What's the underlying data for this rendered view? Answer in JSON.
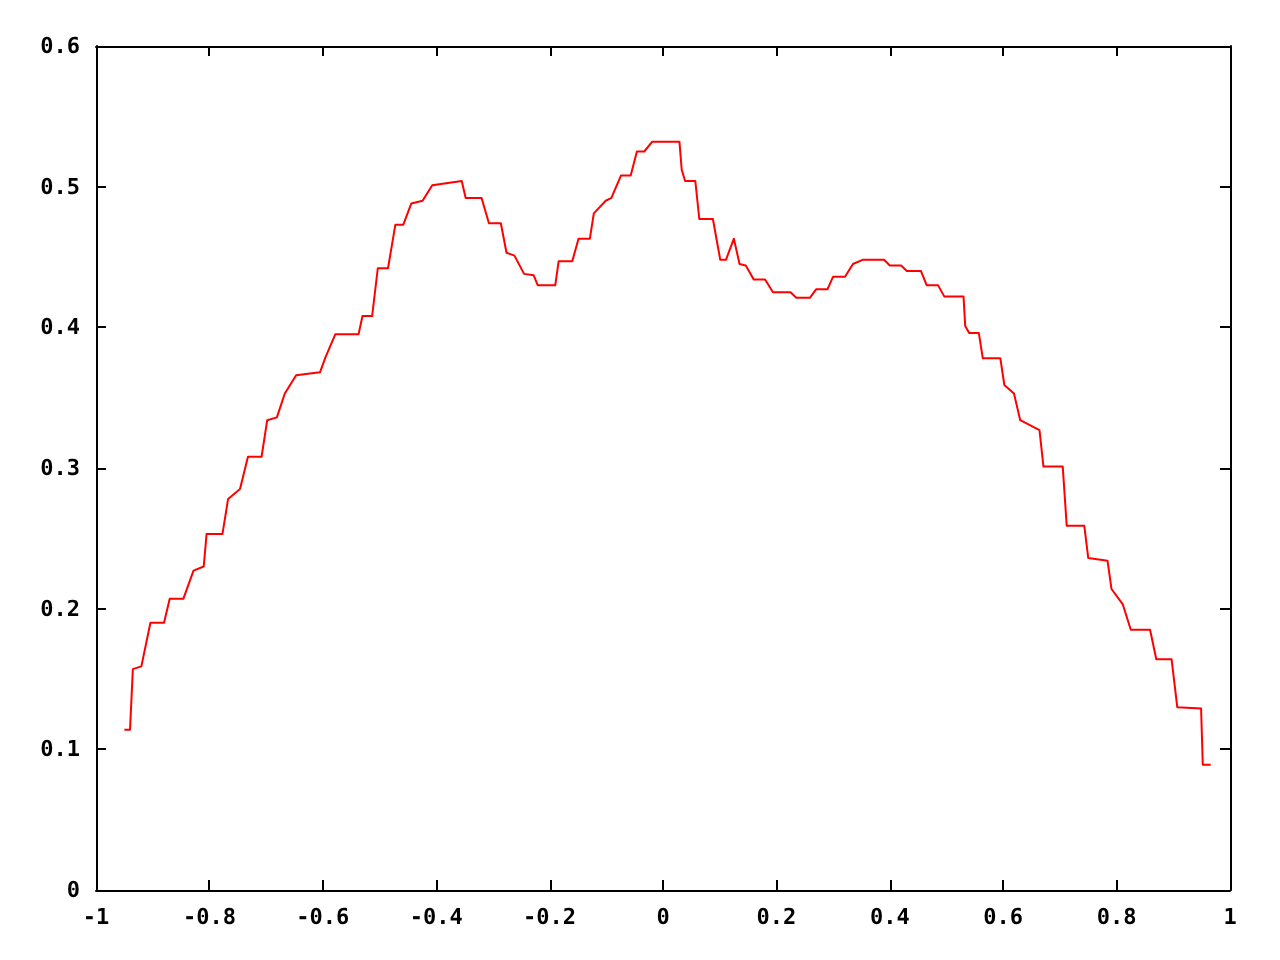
{
  "chart_data": {
    "type": "line",
    "series": [
      {
        "color": "#ff0000",
        "x": [
          -0.95,
          -0.94,
          -0.935,
          -0.92,
          -0.904,
          -0.88,
          -0.87,
          -0.846,
          -0.828,
          -0.81,
          -0.805,
          -0.777,
          -0.767,
          -0.746,
          -0.732,
          -0.708,
          -0.698,
          -0.681,
          -0.667,
          -0.647,
          -0.605,
          -0.595,
          -0.578,
          -0.537,
          -0.53,
          -0.513,
          -0.503,
          -0.485,
          -0.472,
          -0.458,
          -0.444,
          -0.424,
          -0.407,
          -0.355,
          -0.348,
          -0.32,
          -0.307,
          -0.286,
          -0.276,
          -0.262,
          -0.245,
          -0.228,
          -0.221,
          -0.19,
          -0.184,
          -0.16,
          -0.149,
          -0.129,
          -0.122,
          -0.101,
          -0.091,
          -0.074,
          -0.057,
          -0.046,
          -0.033,
          -0.019,
          0.029,
          0.033,
          0.039,
          0.057,
          0.064,
          0.088,
          0.101,
          0.111,
          0.125,
          0.135,
          0.146,
          0.16,
          0.18,
          0.194,
          0.225,
          0.235,
          0.259,
          0.27,
          0.29,
          0.3,
          0.321,
          0.335,
          0.352,
          0.39,
          0.4,
          0.42,
          0.43,
          0.455,
          0.465,
          0.485,
          0.496,
          0.53,
          0.533,
          0.54,
          0.557,
          0.564,
          0.595,
          0.602,
          0.619,
          0.63,
          0.664,
          0.671,
          0.705,
          0.712,
          0.743,
          0.75,
          0.784,
          0.791,
          0.811,
          0.825,
          0.859,
          0.87,
          0.897,
          0.907,
          0.949,
          0.952,
          0.966
        ],
        "values": [
          0.114,
          0.114,
          0.157,
          0.159,
          0.19,
          0.19,
          0.207,
          0.207,
          0.227,
          0.23,
          0.253,
          0.253,
          0.278,
          0.285,
          0.308,
          0.308,
          0.334,
          0.336,
          0.353,
          0.366,
          0.368,
          0.379,
          0.395,
          0.395,
          0.408,
          0.408,
          0.442,
          0.442,
          0.473,
          0.473,
          0.488,
          0.49,
          0.501,
          0.504,
          0.492,
          0.492,
          0.474,
          0.474,
          0.453,
          0.451,
          0.438,
          0.437,
          0.43,
          0.43,
          0.447,
          0.447,
          0.463,
          0.463,
          0.481,
          0.49,
          0.492,
          0.508,
          0.508,
          0.525,
          0.525,
          0.532,
          0.532,
          0.512,
          0.504,
          0.504,
          0.477,
          0.477,
          0.448,
          0.448,
          0.463,
          0.445,
          0.444,
          0.434,
          0.434,
          0.425,
          0.425,
          0.421,
          0.421,
          0.427,
          0.427,
          0.436,
          0.436,
          0.445,
          0.448,
          0.448,
          0.444,
          0.444,
          0.44,
          0.44,
          0.43,
          0.43,
          0.422,
          0.422,
          0.401,
          0.396,
          0.396,
          0.378,
          0.378,
          0.359,
          0.353,
          0.334,
          0.327,
          0.301,
          0.301,
          0.259,
          0.259,
          0.236,
          0.234,
          0.214,
          0.203,
          0.185,
          0.185,
          0.164,
          0.164,
          0.13,
          0.129,
          0.089,
          0.089
        ]
      }
    ],
    "xlim": [
      -1,
      1
    ],
    "xticks": [
      -1,
      -0.8,
      -0.6,
      -0.4,
      -0.2,
      0,
      0.2,
      0.4,
      0.6,
      0.8,
      1
    ],
    "ylim": [
      0,
      0.6
    ],
    "yticks": [
      0,
      0.1,
      0.2,
      0.3,
      0.4,
      0.5,
      0.6
    ]
  }
}
